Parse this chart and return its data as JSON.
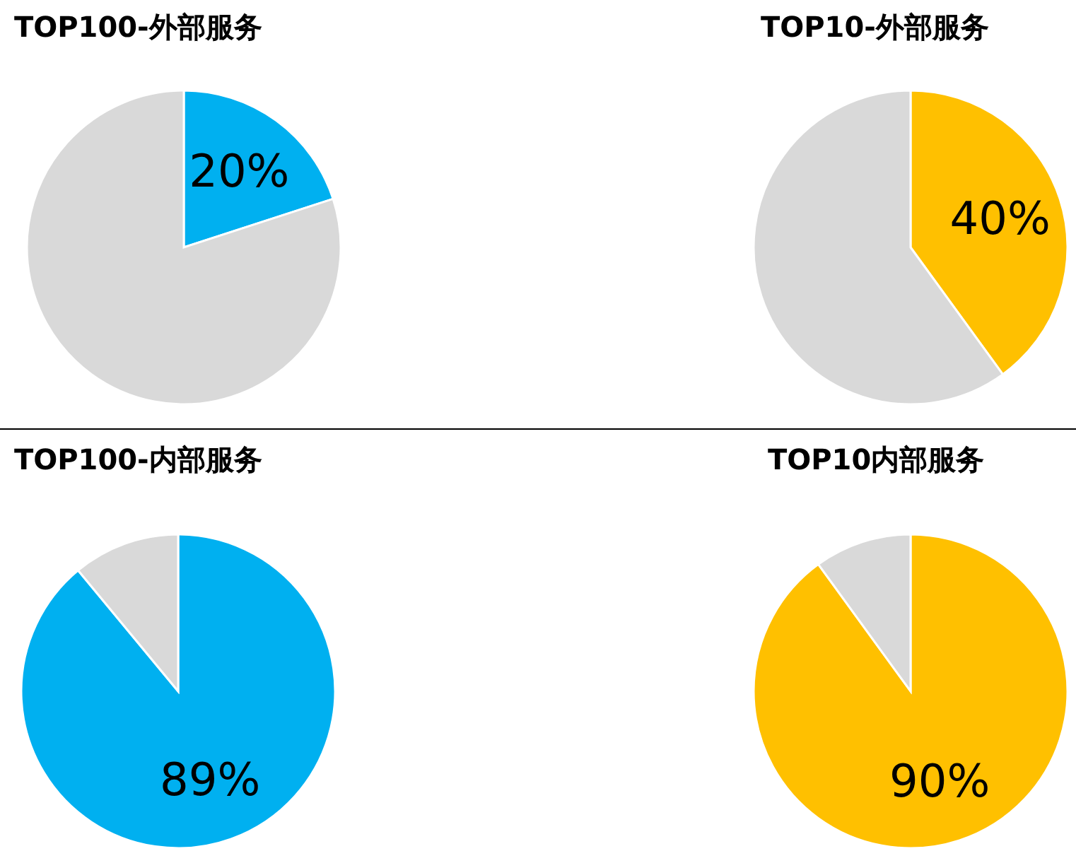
{
  "chart_data": [
    {
      "type": "pie",
      "title": "TOP100-外部服务",
      "categories": [
        null,
        null
      ],
      "values": [
        20,
        80
      ],
      "colors": [
        "#00b0f0",
        "#d9d9d9"
      ],
      "value_labels": [
        "20%",
        null
      ]
    },
    {
      "type": "pie",
      "title": "TOP10-外部服务",
      "categories": [
        null,
        null
      ],
      "values": [
        40,
        60
      ],
      "colors": [
        "#ffc000",
        "#d9d9d9"
      ],
      "value_labels": [
        "40%",
        null
      ]
    },
    {
      "type": "pie",
      "title": "TOP100-内部服务",
      "categories": [
        null,
        null
      ],
      "values": [
        89,
        11
      ],
      "colors": [
        "#00b0f0",
        "#d9d9d9"
      ],
      "value_labels": [
        "89%",
        null
      ]
    },
    {
      "type": "pie",
      "title": "TOP10内部服务",
      "categories": [
        null,
        null
      ],
      "values": [
        90,
        10
      ],
      "colors": [
        "#ffc000",
        "#d9d9d9"
      ],
      "value_labels": [
        "90%",
        null
      ]
    }
  ]
}
